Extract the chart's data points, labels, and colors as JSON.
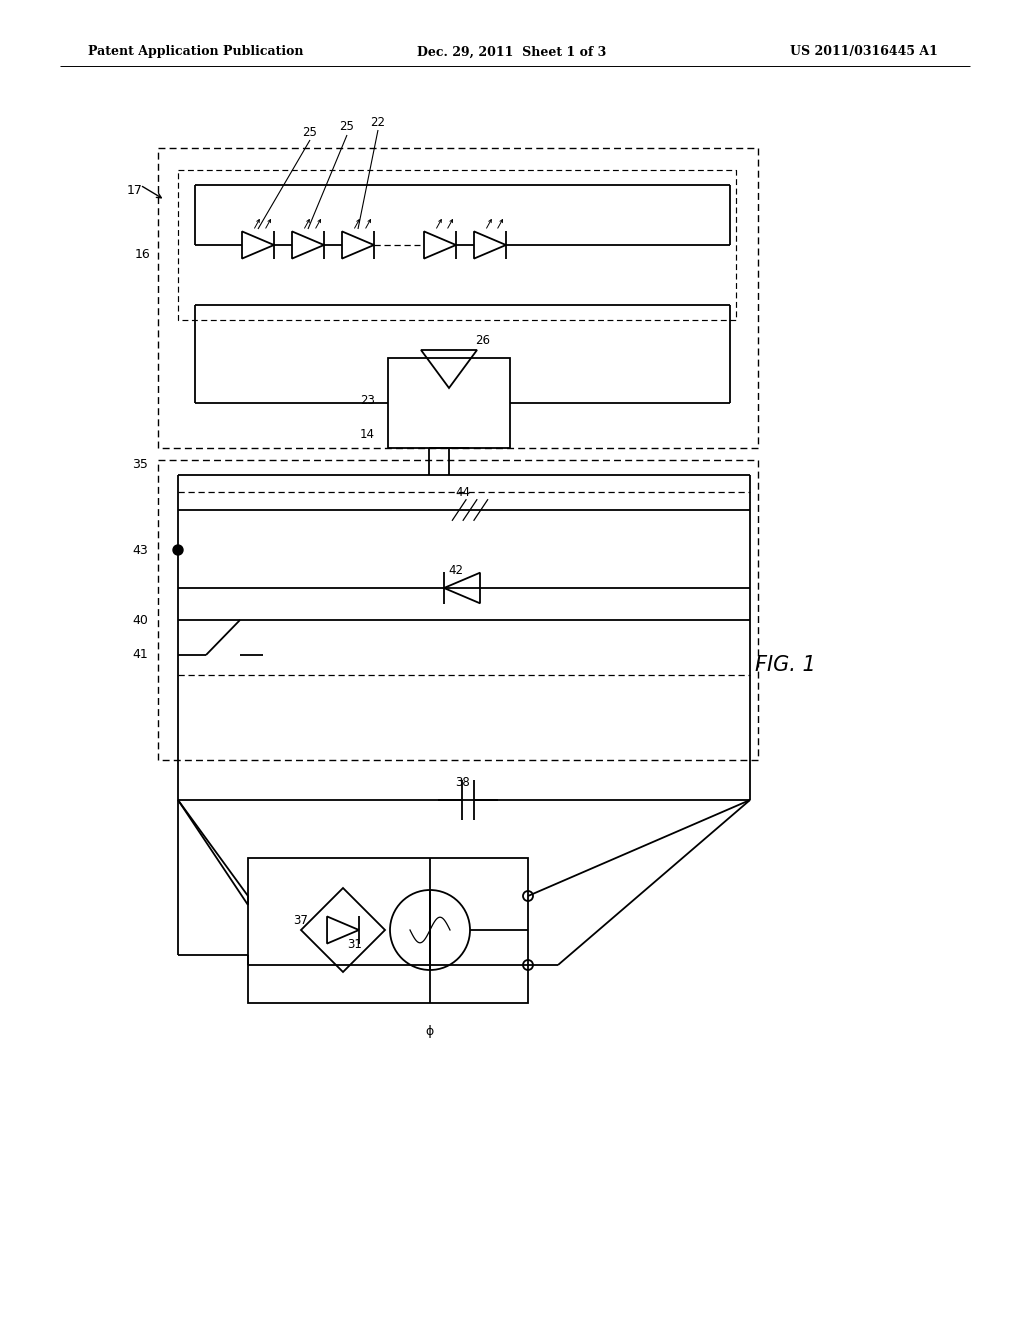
{
  "bg_color": "#ffffff",
  "header_left": "Patent Application Publication",
  "header_mid": "Dec. 29, 2011  Sheet 1 of 3",
  "header_right": "US 2011/0316445 A1",
  "fig_label": "FIG. 1",
  "lw_main": 1.3,
  "lw_dash": 0.9
}
